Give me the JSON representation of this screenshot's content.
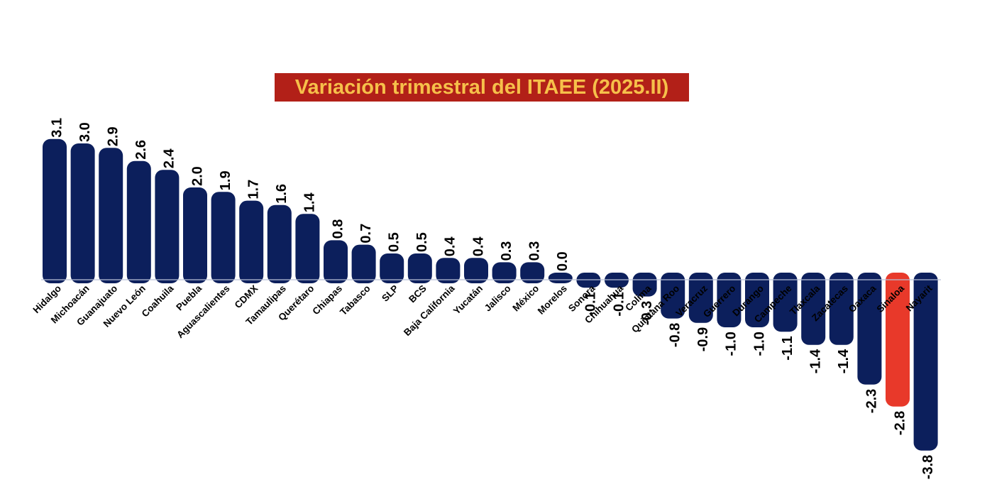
{
  "chart_data": {
    "type": "bar",
    "title": "Variación trimestral del ITAEE (2025.II)",
    "categories": [
      "Hidalgo",
      "Michoacán",
      "Guanajuato",
      "Nuevo León",
      "Coahuila",
      "Puebla",
      "Aguascalientes",
      "CDMX",
      "Tamaulipas",
      "Querétaro",
      "Chiapas",
      "Tabasco",
      "SLP",
      "BCS",
      "Baja California",
      "Yucatán",
      "Jalisco",
      "México",
      "Morelos",
      "Sonora",
      "Chihuahua",
      "Colima",
      "Quintana Roo",
      "Veracruz",
      "Guerrero",
      "Durango",
      "Campeche",
      "Tlaxcala",
      "Zacatecas",
      "Oaxaca",
      "Sinaloa",
      "Nayarit"
    ],
    "values": [
      3.1,
      3.0,
      2.9,
      2.6,
      2.4,
      2.0,
      1.9,
      1.7,
      1.6,
      1.4,
      0.8,
      0.7,
      0.5,
      0.5,
      0.4,
      0.4,
      0.3,
      0.3,
      0.0,
      -0.1,
      -0.1,
      -0.3,
      -0.8,
      -0.9,
      -1.0,
      -1.0,
      -1.1,
      -1.4,
      -1.4,
      -2.3,
      -2.8,
      -3.8
    ],
    "value_labels": [
      "3.1",
      "3.0",
      "2.9",
      "2.6",
      "2.4",
      "2.0",
      "1.9",
      "1.7",
      "1.6",
      "1.4",
      "0.8",
      "0.7",
      "0.5",
      "0.5",
      "0.4",
      "0.4",
      "0.3",
      "0.3",
      "0.0",
      "-0.1",
      "-0.1",
      "-0.3",
      "-0.8",
      "-0.9",
      "-1.0",
      "-1.0",
      "-1.1",
      "-1.4",
      "-1.4",
      "-2.3",
      "-2.8",
      "-3.8"
    ],
    "highlight_category": "Sinaloa",
    "xlabel": "",
    "ylabel": "",
    "grid": false,
    "legend": "none",
    "colors": {
      "bar": "#0c1f5c",
      "highlight": "#e8392a",
      "title_background": "#b22018",
      "title_text": "#f6c04a"
    }
  }
}
